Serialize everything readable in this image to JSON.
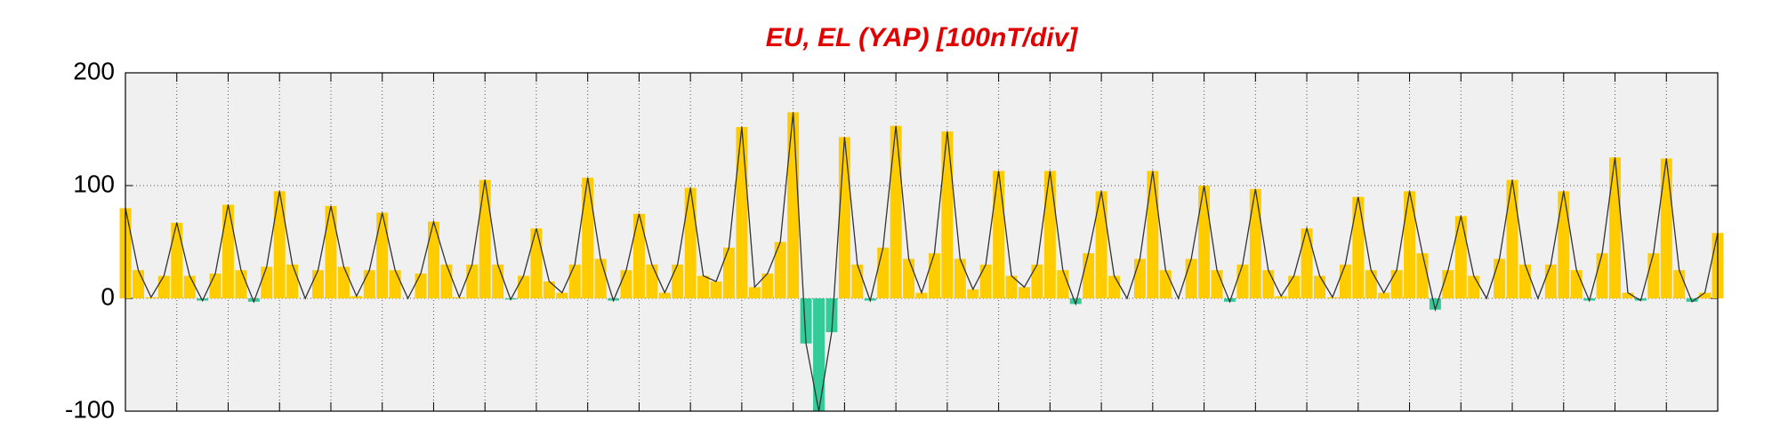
{
  "chart_data": {
    "type": "signed-area",
    "title": "EU, EL (YAP)  [100nT/div]",
    "x": [
      0,
      0.25,
      0.5,
      0.75,
      1,
      1.25,
      1.5,
      1.75,
      2,
      2.25,
      2.5,
      2.75,
      3,
      3.25,
      3.5,
      3.75,
      4,
      4.25,
      4.5,
      4.75,
      5,
      5.25,
      5.5,
      5.75,
      6,
      6.25,
      6.5,
      6.75,
      7,
      7.25,
      7.5,
      7.75,
      8,
      8.25,
      8.5,
      8.75,
      9,
      9.25,
      9.5,
      9.75,
      10,
      10.25,
      10.5,
      10.75,
      11,
      11.25,
      11.5,
      11.75,
      12,
      12.25,
      12.5,
      12.75,
      13,
      13.25,
      13.5,
      13.75,
      14,
      14.25,
      14.5,
      14.75,
      15,
      15.25,
      15.5,
      15.75,
      16,
      16.25,
      16.5,
      16.75,
      17,
      17.25,
      17.5,
      17.75,
      18,
      18.25,
      18.5,
      18.75,
      19,
      19.25,
      19.5,
      19.75,
      20,
      20.25,
      20.5,
      20.75,
      21,
      21.25,
      21.5,
      21.75,
      22,
      22.25,
      22.5,
      22.75,
      23,
      23.25,
      23.5,
      23.75,
      24,
      24.25,
      24.5,
      24.75,
      25,
      25.25,
      25.5,
      25.75,
      26,
      26.25,
      26.5,
      26.75,
      27,
      27.25,
      27.5,
      27.75,
      28,
      28.25,
      28.5,
      28.75,
      29,
      29.25,
      29.5,
      29.75,
      30,
      30.25,
      30.5,
      30.75,
      31
    ],
    "values": [
      80,
      25,
      1,
      20,
      67,
      20,
      -2,
      22,
      83,
      25,
      -3,
      28,
      95,
      30,
      0,
      25,
      82,
      28,
      2,
      25,
      76,
      25,
      0,
      22,
      68,
      30,
      1,
      30,
      105,
      30,
      -1,
      20,
      62,
      15,
      5,
      30,
      107,
      35,
      -2,
      25,
      75,
      30,
      5,
      30,
      98,
      20,
      15,
      45,
      152,
      10,
      22,
      50,
      165,
      -40,
      -100,
      -30,
      143,
      30,
      -2,
      45,
      153,
      35,
      5,
      40,
      148,
      35,
      8,
      30,
      113,
      20,
      10,
      30,
      113,
      25,
      -5,
      40,
      95,
      20,
      0,
      35,
      113,
      25,
      0,
      35,
      100,
      25,
      -3,
      30,
      97,
      25,
      2,
      20,
      62,
      20,
      1,
      30,
      90,
      25,
      5,
      25,
      95,
      40,
      -10,
      25,
      73,
      20,
      0,
      35,
      105,
      30,
      0,
      30,
      95,
      25,
      -2,
      40,
      125,
      5,
      -2,
      40,
      124,
      25,
      -3,
      5,
      58
    ],
    "positive_color": "#ffcc00",
    "negative_color": "#33cc99",
    "line_color": "#333333",
    "title_color": "#e00000",
    "xlim": [
      0,
      31
    ],
    "xticks": [
      0,
      1,
      2,
      3,
      4,
      5,
      6,
      7,
      8,
      9,
      10,
      11,
      12,
      13,
      14,
      15,
      16,
      17,
      18,
      19,
      20,
      21,
      22,
      23,
      24,
      25,
      26,
      27,
      28,
      29,
      30,
      31
    ],
    "ylim": [
      -100,
      200
    ],
    "yticks": [
      -100,
      0,
      100,
      200
    ],
    "grid": true
  }
}
